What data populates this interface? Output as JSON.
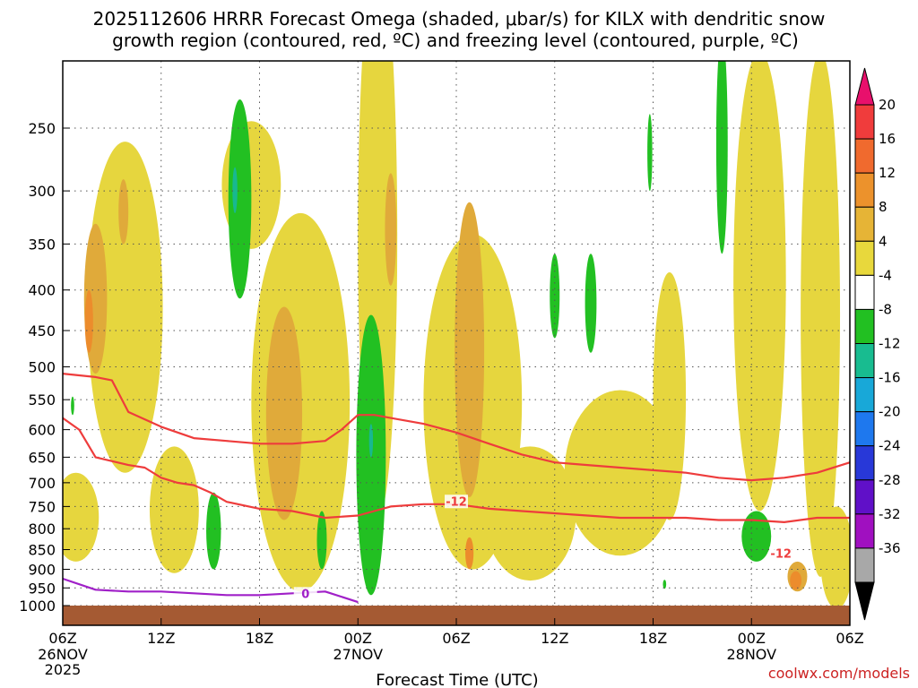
{
  "chart_data": {
    "type": "heatmap",
    "title": [
      "2025112606 HRRR Forecast Omega (shaded, μbar/s) for KILX with dendritic snow",
      "growth region (contoured, red, ºC) and freezing level (contoured, purple, ºC)"
    ],
    "xlabel": "Forecast Time (UTC)",
    "ylabel": "",
    "credit": "coolwx.com/models",
    "x_range_hours": [
      0,
      48
    ],
    "x_ticks": [
      {
        "h": 0,
        "label": "06Z",
        "sub": [
          "26NOV",
          "2025"
        ]
      },
      {
        "h": 6,
        "label": "12Z",
        "sub": []
      },
      {
        "h": 12,
        "label": "18Z",
        "sub": []
      },
      {
        "h": 18,
        "label": "00Z",
        "sub": [
          "27NOV"
        ]
      },
      {
        "h": 24,
        "label": "06Z",
        "sub": []
      },
      {
        "h": 30,
        "label": "12Z",
        "sub": []
      },
      {
        "h": 36,
        "label": "18Z",
        "sub": []
      },
      {
        "h": 42,
        "label": "00Z",
        "sub": [
          "28NOV"
        ]
      },
      {
        "h": 48,
        "label": "06Z",
        "sub": []
      }
    ],
    "y_ticks_hpa": [
      250,
      300,
      350,
      400,
      450,
      500,
      550,
      600,
      650,
      700,
      750,
      800,
      850,
      900,
      950,
      1000
    ],
    "colorbar": {
      "labels": [
        "20",
        "16",
        "12",
        "8",
        "4",
        "-4",
        "-8",
        "-12",
        "-16",
        "-20",
        "-24",
        "-28",
        "-32",
        "-36"
      ],
      "colors": [
        "#e8106c",
        "#f03c3c",
        "#f06a2e",
        "#ec922c",
        "#e6b436",
        "#e8d83c",
        "#ffffff",
        "#22c022",
        "#18bc90",
        "#18a8d8",
        "#1e78ee",
        "#2838d8",
        "#6010c8",
        "#a010c0",
        "#a8a8a8",
        "#000000"
      ]
    },
    "contour_labels": [
      "-12",
      "-12",
      "0"
    ],
    "series": [
      {
        "name": "omega_4_8",
        "color": "#e6d63e",
        "blobs": [
          {
            "t": 3.8,
            "p": 470,
            "dt": 2.3,
            "dp": 420
          },
          {
            "t": 11.5,
            "p": 300,
            "dt": 1.8,
            "dp": 110
          },
          {
            "t": 6.8,
            "p": 770,
            "dt": 1.5,
            "dp": 280
          },
          {
            "t": 0.8,
            "p": 780,
            "dt": 1.4,
            "dp": 200
          },
          {
            "t": 14.5,
            "p": 640,
            "dt": 3.0,
            "dp": 640
          },
          {
            "t": 19.2,
            "p": 450,
            "dt": 1.2,
            "dp": 660
          },
          {
            "t": 25.0,
            "p": 620,
            "dt": 3.0,
            "dp": 560
          },
          {
            "t": 28.5,
            "p": 780,
            "dt": 2.8,
            "dp": 300
          },
          {
            "t": 34.0,
            "p": 700,
            "dt": 3.4,
            "dp": 330
          },
          {
            "t": 37.0,
            "p": 580,
            "dt": 1.0,
            "dp": 400
          },
          {
            "t": 42.5,
            "p": 480,
            "dt": 1.6,
            "dp": 560
          },
          {
            "t": 46.2,
            "p": 560,
            "dt": 1.2,
            "dp": 720
          },
          {
            "t": 47.2,
            "p": 880,
            "dt": 1.0,
            "dp": 260
          }
        ]
      },
      {
        "name": "omega_8_12",
        "color": "#e0aa3a",
        "blobs": [
          {
            "t": 2.0,
            "p": 420,
            "dt": 0.7,
            "dp": 180
          },
          {
            "t": 13.5,
            "p": 600,
            "dt": 1.1,
            "dp": 360
          },
          {
            "t": 24.8,
            "p": 520,
            "dt": 0.9,
            "dp": 420
          },
          {
            "t": 3.7,
            "p": 320,
            "dt": 0.3,
            "dp": 60
          },
          {
            "t": 20.0,
            "p": 340,
            "dt": 0.35,
            "dp": 110
          },
          {
            "t": 44.8,
            "p": 920,
            "dt": 0.6,
            "dp": 80
          }
        ]
      },
      {
        "name": "omega_12_16",
        "color": "#ec8c2c",
        "blobs": [
          {
            "t": 1.6,
            "p": 440,
            "dt": 0.25,
            "dp": 80
          },
          {
            "t": 24.8,
            "p": 860,
            "dt": 0.25,
            "dp": 80
          },
          {
            "t": 44.7,
            "p": 930,
            "dt": 0.35,
            "dp": 50
          }
        ]
      },
      {
        "name": "omega_neg4_neg8",
        "color": "#22c022",
        "blobs": [
          {
            "t": 10.8,
            "p": 320,
            "dt": 0.7,
            "dp": 180
          },
          {
            "t": 9.2,
            "p": 810,
            "dt": 0.45,
            "dp": 180
          },
          {
            "t": 18.8,
            "p": 700,
            "dt": 0.9,
            "dp": 540
          },
          {
            "t": 15.8,
            "p": 830,
            "dt": 0.3,
            "dp": 140
          },
          {
            "t": 30.0,
            "p": 410,
            "dt": 0.3,
            "dp": 100
          },
          {
            "t": 32.2,
            "p": 420,
            "dt": 0.35,
            "dp": 120
          },
          {
            "t": 35.8,
            "p": 270,
            "dt": 0.15,
            "dp": 60
          },
          {
            "t": 40.2,
            "p": 275,
            "dt": 0.35,
            "dp": 170
          },
          {
            "t": 42.3,
            "p": 820,
            "dt": 0.9,
            "dp": 120
          },
          {
            "t": 36.7,
            "p": 940,
            "dt": 0.1,
            "dp": 25
          },
          {
            "t": 0.6,
            "p": 560,
            "dt": 0.1,
            "dp": 30
          }
        ]
      },
      {
        "name": "omega_neg8_neg12",
        "color": "#18b890",
        "blobs": [
          {
            "t": 10.5,
            "p": 300,
            "dt": 0.15,
            "dp": 40
          },
          {
            "t": 18.8,
            "p": 620,
            "dt": 0.12,
            "dp": 60
          }
        ]
      },
      {
        "name": "dgz_top_-12C",
        "color": "#ee3c3c",
        "type": "line",
        "x": [
          0,
          2,
          3,
          4,
          6,
          8,
          10,
          12,
          14,
          16,
          17,
          18,
          19,
          20,
          22,
          24,
          26,
          28,
          30,
          32,
          34,
          36,
          38,
          40,
          42,
          44,
          46,
          48
        ],
        "y": [
          510,
          515,
          520,
          570,
          595,
          615,
          620,
          625,
          625,
          620,
          600,
          575,
          575,
          580,
          590,
          605,
          625,
          645,
          660,
          665,
          670,
          675,
          680,
          690,
          695,
          690,
          680,
          660
        ]
      },
      {
        "name": "dgz_bottom_-12C",
        "color": "#ee3c3c",
        "type": "line",
        "x": [
          0,
          1,
          2,
          4,
          5,
          6,
          7,
          8,
          9,
          10,
          12,
          14,
          16,
          18,
          20,
          22,
          24,
          26,
          28,
          30,
          32,
          34,
          36,
          38,
          40,
          42,
          44,
          46,
          48
        ],
        "y": [
          580,
          600,
          650,
          665,
          670,
          690,
          700,
          705,
          720,
          740,
          755,
          760,
          775,
          770,
          750,
          745,
          745,
          755,
          760,
          765,
          770,
          775,
          775,
          775,
          780,
          780,
          785,
          775,
          775
        ]
      },
      {
        "name": "freezing_level_0C",
        "color": "#a020c8",
        "type": "line",
        "x": [
          0,
          2,
          4,
          6,
          8,
          10,
          12,
          14,
          16,
          18
        ],
        "y": [
          925,
          955,
          960,
          960,
          965,
          970,
          970,
          965,
          960,
          990
        ]
      }
    ],
    "axes": {
      "y_range_hpa": [
        200,
        1000
      ],
      "y_scale": "log",
      "grid": true,
      "colorbar_position": "right"
    }
  }
}
